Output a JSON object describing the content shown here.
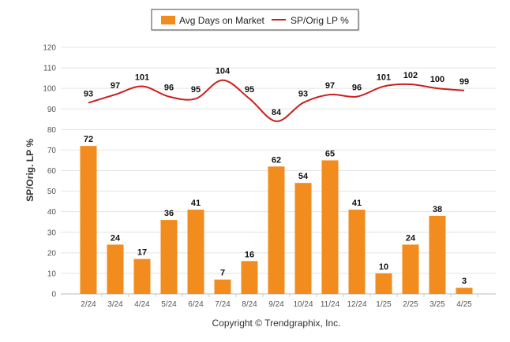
{
  "chart_data": {
    "type": "bar",
    "categories": [
      "2/24",
      "3/24",
      "4/24",
      "5/24",
      "6/24",
      "7/24",
      "8/24",
      "9/24",
      "10/24",
      "11/24",
      "12/24",
      "1/25",
      "2/25",
      "3/25",
      "4/25"
    ],
    "series": [
      {
        "name": "Avg Days on Market",
        "type": "bar",
        "color": "#F28C1E",
        "values": [
          72,
          24,
          17,
          36,
          41,
          7,
          16,
          62,
          54,
          65,
          41,
          10,
          24,
          38,
          3
        ]
      },
      {
        "name": "SP/Orig LP %",
        "type": "line",
        "color": "#CC1E1E",
        "values": [
          93,
          97,
          101,
          96,
          95,
          104,
          95,
          84,
          93,
          97,
          96,
          101,
          102,
          100,
          99
        ]
      }
    ],
    "ylabel": "SP/Orig. LP %",
    "ylim": [
      0,
      120
    ],
    "yticks": [
      0,
      10,
      20,
      30,
      40,
      50,
      60,
      70,
      80,
      90,
      100,
      110,
      120
    ],
    "grid": true,
    "legend": "top-center",
    "copyright": "Copyright © Trendgraphix, Inc."
  }
}
